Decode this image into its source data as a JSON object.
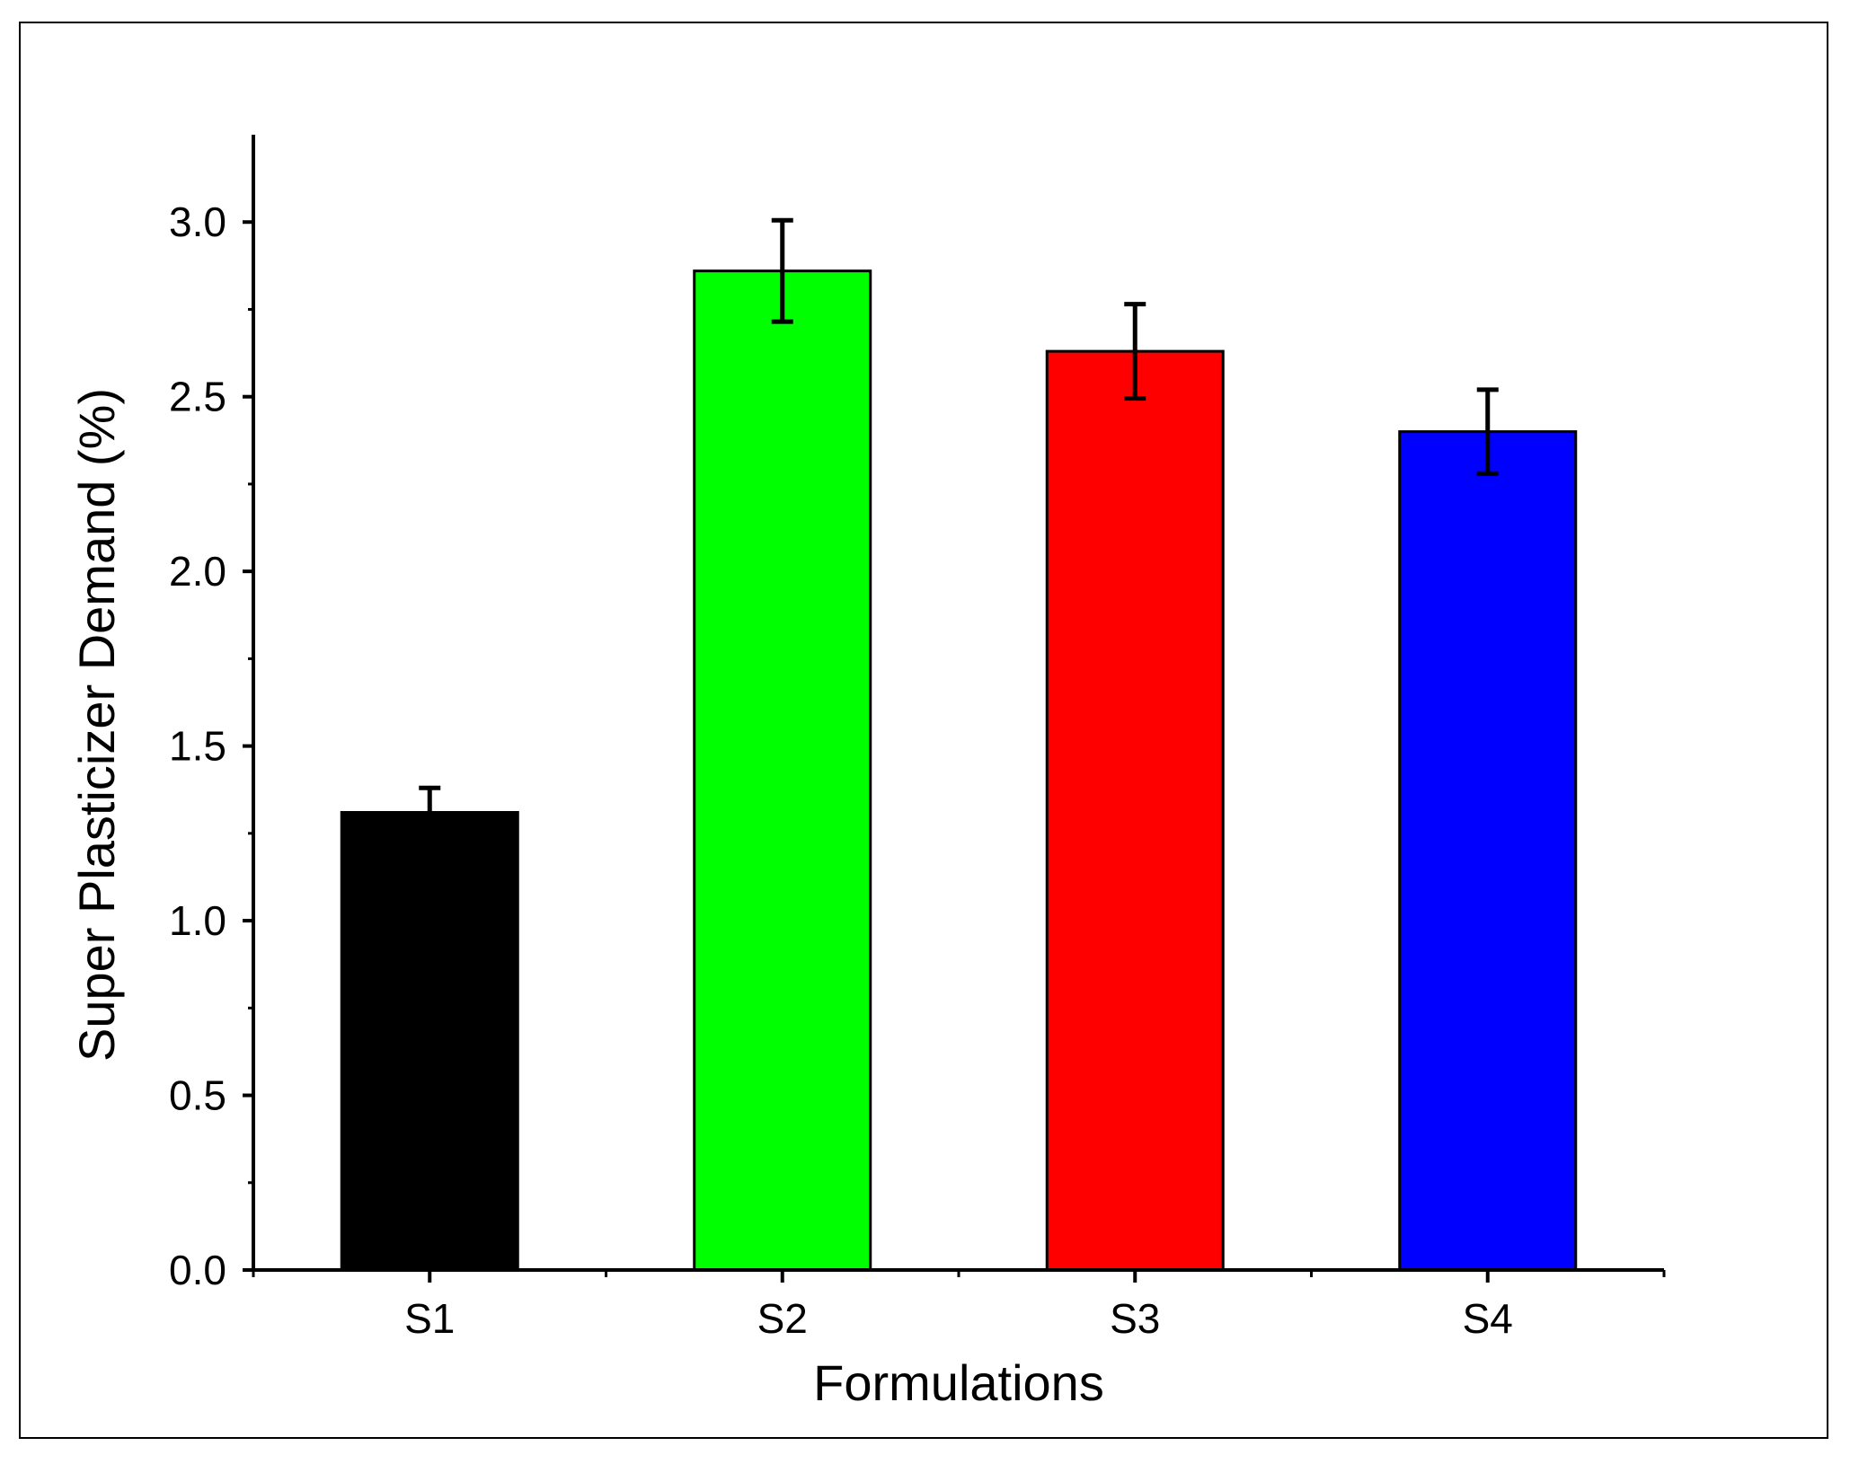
{
  "chart_data": {
    "type": "bar",
    "title": "",
    "xlabel": "Formulations",
    "ylabel": "Super Plasticizer Demand (%)",
    "categories": [
      "S1",
      "S2",
      "S3",
      "S4"
    ],
    "values": [
      1.31,
      2.86,
      2.63,
      2.4
    ],
    "errors": [
      0.07,
      0.145,
      0.135,
      0.12
    ],
    "colors": [
      "#000000",
      "#00ff00",
      "#ff0000",
      "#0000ff"
    ],
    "ylim": [
      0,
      3.25
    ],
    "yticks": [
      0.0,
      0.5,
      1.0,
      1.5,
      2.0,
      2.5,
      3.0
    ],
    "ytick_labels": [
      "0.0",
      "0.5",
      "1.0",
      "1.5",
      "2.0",
      "2.5",
      "3.0"
    ],
    "grid": false,
    "legend": "none"
  }
}
